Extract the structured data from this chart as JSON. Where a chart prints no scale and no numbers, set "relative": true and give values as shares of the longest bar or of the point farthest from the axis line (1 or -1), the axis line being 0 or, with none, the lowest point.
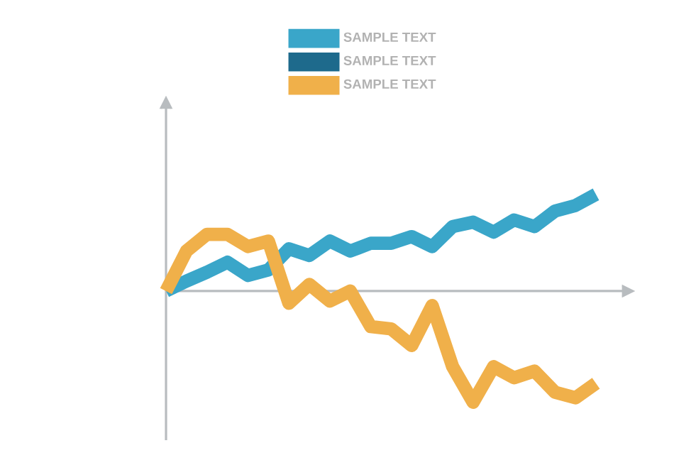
{
  "chart_data": {
    "type": "line",
    "relative": true,
    "legend": "top",
    "marker": "none",
    "line_style": "solid",
    "categories": [
      null,
      null,
      null,
      null,
      null,
      null,
      null,
      null,
      null,
      null,
      null,
      null,
      null,
      null,
      null,
      null,
      null,
      null,
      null,
      null,
      null,
      null
    ],
    "series": [
      {
        "name": "SAMPLE TEXT",
        "color": "#3aa6c9",
        "values": [
          0,
          0.09,
          0.17,
          0.26,
          0.14,
          0.19,
          0.38,
          0.32,
          0.45,
          0.36,
          0.43,
          0.43,
          0.49,
          0.4,
          0.58,
          0.62,
          0.53,
          0.64,
          0.58,
          0.72,
          0.77,
          0.87
        ]
      },
      {
        "name": "SAMPLE TEXT",
        "color": "#1e6a8c",
        "values": [
          null,
          null,
          null,
          null,
          null,
          null,
          null,
          null,
          null,
          null,
          null,
          null,
          null,
          null,
          null,
          null,
          null,
          null,
          null,
          null,
          null,
          null
        ]
      },
      {
        "name": "SAMPLE TEXT",
        "color": "#f0b04a",
        "values": [
          0,
          0.36,
          0.51,
          0.51,
          0.4,
          0.45,
          -0.11,
          0.06,
          -0.09,
          0,
          -0.32,
          -0.34,
          -0.49,
          -0.13,
          -0.68,
          -1,
          -0.68,
          -0.78,
          -0.72,
          -0.91,
          -0.96,
          -0.83
        ]
      }
    ]
  }
}
